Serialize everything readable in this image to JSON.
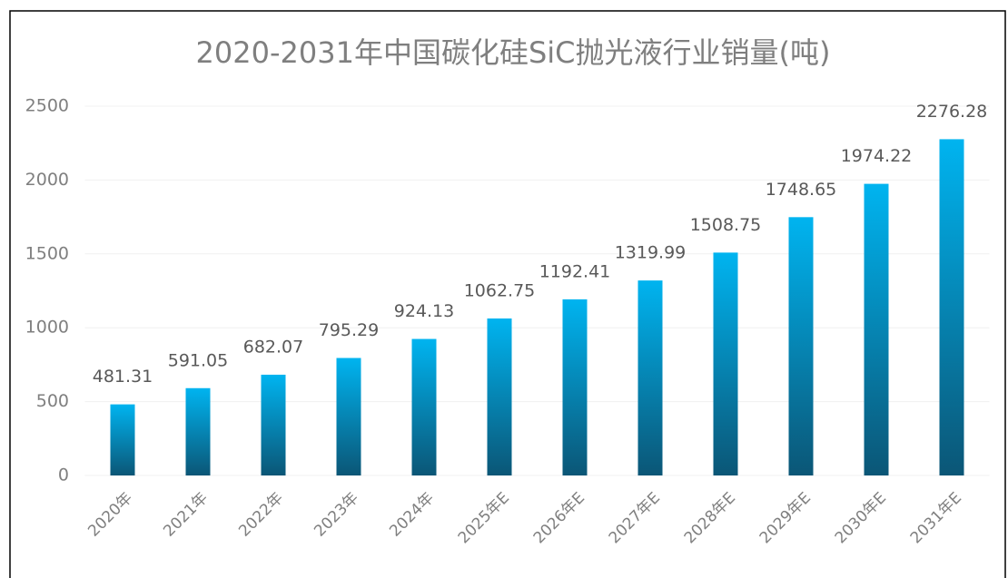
{
  "chart_data": {
    "type": "bar",
    "title": "2020-2031年中国碳化硅SiC抛光液行业销量(吨)",
    "categories": [
      "2020年",
      "2021年",
      "2022年",
      "2023年",
      "2024年",
      "2025年E",
      "2026年E",
      "2027年E",
      "2028年E",
      "2029年E",
      "2030年E",
      "2031年E"
    ],
    "values": [
      481.31,
      591.05,
      682.07,
      795.29,
      924.13,
      1062.75,
      1192.41,
      1319.99,
      1508.75,
      1748.65,
      1974.22,
      2276.28
    ],
    "color": "#00b4f0",
    "color_end": "#0b5676",
    "ylim": [
      0,
      2500
    ],
    "yticks": [
      0,
      500,
      1000,
      1500,
      2000,
      2500
    ],
    "grid": true
  }
}
